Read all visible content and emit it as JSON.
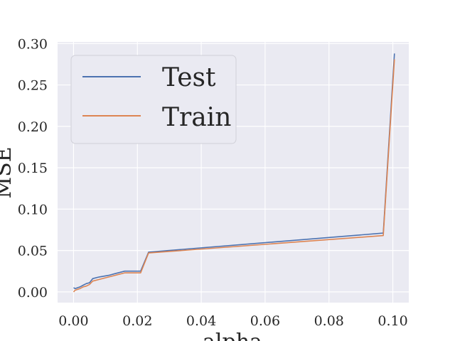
{
  "chart_data": {
    "type": "line",
    "title": "",
    "xlabel": "alpha",
    "ylabel": "MSE",
    "xlim": [
      -0.005,
      0.105
    ],
    "ylim": [
      -0.013,
      0.302
    ],
    "xticks": [
      0.0,
      0.02,
      0.04,
      0.06,
      0.08,
      0.1
    ],
    "xtick_labels": [
      "0.00",
      "0.02",
      "0.04",
      "0.06",
      "0.08",
      "0.10"
    ],
    "yticks": [
      0.0,
      0.05,
      0.1,
      0.15,
      0.2,
      0.25,
      0.3
    ],
    "ytick_labels": [
      "0.00",
      "0.05",
      "0.10",
      "0.15",
      "0.20",
      "0.25",
      "0.30"
    ],
    "grid": true,
    "legend_position": "top-left",
    "series": [
      {
        "name": "Test",
        "color": "#4c72b0",
        "x": [
          0.0,
          0.0005,
          0.002,
          0.003,
          0.004,
          0.005,
          0.006,
          0.008,
          0.011,
          0.013,
          0.016,
          0.019,
          0.021,
          0.0235,
          0.097,
          0.1005
        ],
        "y": [
          0.005,
          0.004,
          0.006,
          0.008,
          0.01,
          0.011,
          0.016,
          0.018,
          0.02,
          0.022,
          0.025,
          0.025,
          0.025,
          0.048,
          0.071,
          0.288
        ]
      },
      {
        "name": "Train",
        "color": "#dd8452",
        "x": [
          0.0,
          0.0005,
          0.002,
          0.003,
          0.004,
          0.005,
          0.006,
          0.008,
          0.011,
          0.013,
          0.016,
          0.019,
          0.021,
          0.0235,
          0.097,
          0.1005
        ],
        "y": [
          0.0,
          0.002,
          0.004,
          0.006,
          0.007,
          0.009,
          0.013,
          0.015,
          0.018,
          0.02,
          0.023,
          0.023,
          0.023,
          0.047,
          0.068,
          0.281
        ]
      }
    ]
  }
}
